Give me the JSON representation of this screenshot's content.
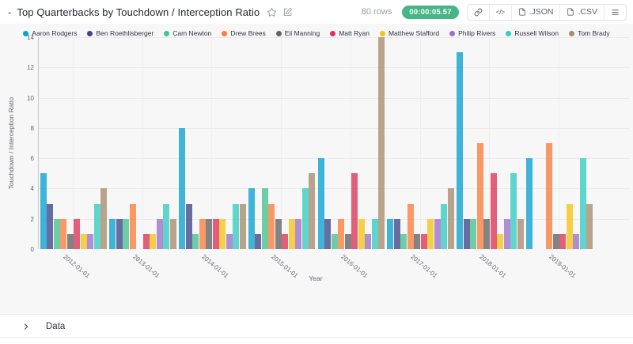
{
  "header": {
    "collapse_dash": "-",
    "title": "Top Quarterbacks by Touchdown / Interception Ratio",
    "rows_label": "80 rows",
    "duration_badge": "00:00:05.57",
    "badge_color": "#45b685",
    "code_glyph": "</>",
    "json_button": ".JSON",
    "csv_button": ".CSV"
  },
  "chart_data": {
    "type": "bar",
    "title": "Top Quarterbacks by Touchdown / Interception Ratio",
    "xlabel": "Year",
    "ylabel": "Touchdown / Interception Ratio",
    "ylim": [
      0,
      14
    ],
    "yticks": [
      0,
      2,
      4,
      6,
      8,
      10,
      12,
      14
    ],
    "grid": true,
    "legend_position": "top",
    "categories": [
      "2012-01-01",
      "2013-01-01",
      "2014-01-01",
      "2015-01-01",
      "2016-01-01",
      "2017-01-01",
      "2018-01-01",
      "2019-01-01"
    ],
    "series": [
      {
        "name": "Aaron Rodgers",
        "color": "#0aa2cf",
        "values": [
          5,
          2,
          8,
          4,
          6,
          2,
          13,
          6
        ]
      },
      {
        "name": "Ben Roethlisberger",
        "color": "#3f4788",
        "values": [
          3,
          2,
          3,
          1,
          2,
          2,
          2,
          0
        ]
      },
      {
        "name": "Cam Newton",
        "color": "#47c28c",
        "values": [
          2,
          2,
          1,
          4,
          1,
          1,
          2,
          0
        ]
      },
      {
        "name": "Drew Brees",
        "color": "#fb7d3c",
        "values": [
          2,
          3,
          2,
          3,
          2,
          3,
          7,
          7
        ]
      },
      {
        "name": "Eli Manning",
        "color": "#636363",
        "values": [
          1,
          0,
          2,
          2,
          1,
          1,
          2,
          1
        ]
      },
      {
        "name": "Matt Ryan",
        "color": "#dd3356",
        "values": [
          2,
          1,
          2,
          1,
          5,
          1,
          5,
          1
        ]
      },
      {
        "name": "Matthew Stafford",
        "color": "#f5c513",
        "values": [
          1,
          1,
          2,
          2,
          2,
          2,
          1,
          3
        ]
      },
      {
        "name": "Philip Rivers",
        "color": "#9e6fc9",
        "values": [
          1,
          2,
          1,
          2,
          1,
          2,
          2,
          1
        ]
      },
      {
        "name": "Russell Wilson",
        "color": "#35cdc0",
        "values": [
          3,
          3,
          3,
          4,
          2,
          3,
          5,
          6
        ]
      },
      {
        "name": "Tom Brady",
        "color": "#a98c6c",
        "values": [
          4,
          2,
          3,
          5,
          14,
          4,
          2,
          3
        ]
      }
    ]
  },
  "footer": {
    "data_label": "Data"
  }
}
